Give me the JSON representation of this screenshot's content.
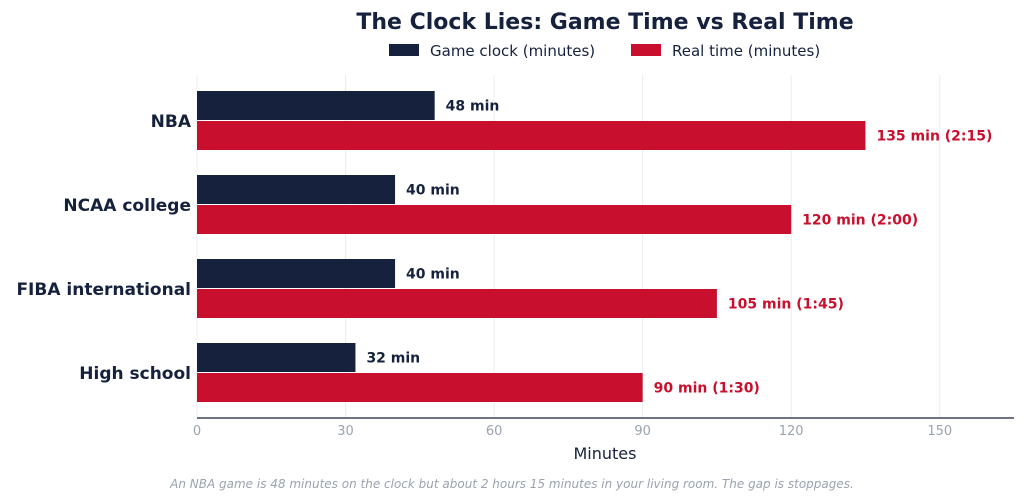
{
  "chart_data": {
    "type": "bar",
    "orientation": "horizontal",
    "title": "The Clock Lies: Game Time vs Real Time",
    "xlabel": "Minutes",
    "ylabel": "",
    "categories": [
      "NBA",
      "NCAA college",
      "FIBA international",
      "High school"
    ],
    "series": [
      {
        "name": "Game clock (minutes)",
        "color": "#16213d",
        "values": [
          48,
          40,
          40,
          32
        ],
        "labels": [
          "48 min",
          "40 min",
          "40 min",
          "32 min"
        ]
      },
      {
        "name": "Real time (minutes)",
        "color": "#c8102e",
        "values": [
          135,
          120,
          105,
          90
        ],
        "labels": [
          "135 min  (2:15)",
          "120 min  (2:00)",
          "105 min  (1:45)",
          "90 min  (1:30)"
        ]
      }
    ],
    "xlim": [
      0,
      165
    ],
    "xticks": [
      0,
      30,
      60,
      90,
      120,
      150
    ],
    "grid": true,
    "legend": "top-center",
    "footnote": "An NBA game is 48 minutes on the clock but about 2 hours 15 minutes in your living room. The gap is stoppages."
  }
}
